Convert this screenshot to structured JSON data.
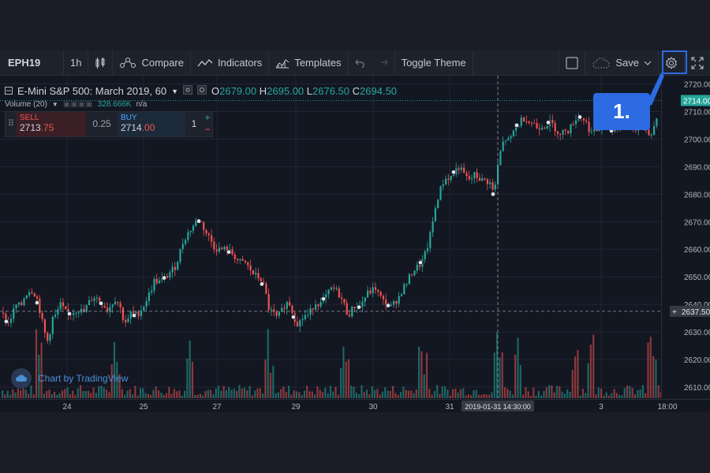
{
  "toolbar": {
    "symbol": "EPH19",
    "interval": "1h",
    "compare": "Compare",
    "indicators": "Indicators",
    "templates": "Templates",
    "toggle_theme": "Toggle Theme",
    "save": "Save"
  },
  "legend": {
    "title": "E-Mini S&P 500: March 2019, 60",
    "o_key": "O",
    "o_val": "2679.00",
    "h_key": "H",
    "h_val": "2695.00",
    "l_key": "L",
    "l_val": "2676.50",
    "c_key": "C",
    "c_val": "2694.50",
    "volume_label": "Volume (20)",
    "volume_value": "328.666K",
    "volume_na": "n/a"
  },
  "trade": {
    "sell_label": "SELL",
    "sell_price_main": "2713",
    "sell_price_frac": ".75",
    "spread": "0.25",
    "buy_label": "BUY",
    "buy_price_main": "2714",
    "buy_price_frac": ".00",
    "qty": "1",
    "plus": "+",
    "minus": "−"
  },
  "callout": {
    "label": "1."
  },
  "watermark": {
    "label": "Chart by TradingView"
  },
  "crosshair": {
    "time_label": "2019-01-31 14:30:00",
    "price_label": "2637.50"
  },
  "last_price_label": "2714.00",
  "colors": {
    "up": "#26a69a",
    "down": "#ef5350",
    "accent": "#2c6be2",
    "bg": "#131722"
  },
  "chart_data": {
    "type": "candlestick",
    "title": "E-Mini S&P 500: March 2019, 60",
    "y_ticks": [
      "2720.00",
      "2710.00",
      "2700.00",
      "2690.00",
      "2680.00",
      "2670.00",
      "2660.00",
      "2650.00",
      "2640.00",
      "2630.00",
      "2620.00",
      "2610.00"
    ],
    "ylim": [
      2606,
      2723
    ],
    "x_ticks": [
      "24",
      "25",
      "27",
      "29",
      "30",
      "31",
      "3",
      "18:00"
    ],
    "close_path": [
      [
        0,
        2637
      ],
      [
        5,
        2635
      ],
      [
        10,
        2633
      ],
      [
        15,
        2637
      ],
      [
        20,
        2640
      ],
      [
        25,
        2639
      ],
      [
        30,
        2643
      ],
      [
        35,
        2645
      ],
      [
        40,
        2645
      ],
      [
        45,
        2643
      ],
      [
        50,
        2637
      ],
      [
        55,
        2630
      ],
      [
        60,
        2626
      ],
      [
        65,
        2635
      ],
      [
        70,
        2636
      ],
      [
        75,
        2640
      ],
      [
        80,
        2638
      ],
      [
        85,
        2636
      ],
      [
        90,
        2637
      ],
      [
        95,
        2638
      ],
      [
        100,
        2638
      ],
      [
        105,
        2637
      ],
      [
        110,
        2640
      ],
      [
        115,
        2642
      ],
      [
        120,
        2643
      ],
      [
        125,
        2641
      ],
      [
        130,
        2640
      ],
      [
        135,
        2638
      ],
      [
        140,
        2640
      ],
      [
        145,
        2642
      ],
      [
        150,
        2640
      ],
      [
        155,
        2635
      ],
      [
        160,
        2633
      ],
      [
        165,
        2637
      ],
      [
        170,
        2636
      ],
      [
        175,
        2637
      ],
      [
        180,
        2639
      ],
      [
        185,
        2642
      ],
      [
        190,
        2645
      ],
      [
        195,
        2649
      ],
      [
        200,
        2648
      ],
      [
        205,
        2649
      ],
      [
        210,
        2650
      ],
      [
        215,
        2652
      ],
      [
        220,
        2653
      ],
      [
        225,
        2657
      ],
      [
        230,
        2662
      ],
      [
        235,
        2665
      ],
      [
        240,
        2667
      ],
      [
        245,
        2669
      ],
      [
        250,
        2671
      ],
      [
        255,
        2669
      ],
      [
        260,
        2666
      ],
      [
        265,
        2664
      ],
      [
        270,
        2661
      ],
      [
        275,
        2660
      ],
      [
        280,
        2660
      ],
      [
        285,
        2660
      ],
      [
        290,
        2659
      ],
      [
        295,
        2658
      ],
      [
        300,
        2656
      ],
      [
        305,
        2655
      ],
      [
        310,
        2655
      ],
      [
        315,
        2653
      ],
      [
        320,
        2651
      ],
      [
        325,
        2650
      ],
      [
        330,
        2649
      ],
      [
        335,
        2645
      ],
      [
        340,
        2638
      ],
      [
        345,
        2637
      ],
      [
        350,
        2635
      ],
      [
        355,
        2637
      ],
      [
        360,
        2640
      ],
      [
        365,
        2641
      ],
      [
        370,
        2637
      ],
      [
        375,
        2633
      ],
      [
        380,
        2634
      ],
      [
        385,
        2636
      ],
      [
        390,
        2636
      ],
      [
        395,
        2639
      ],
      [
        400,
        2641
      ],
      [
        405,
        2640
      ],
      [
        410,
        2642
      ],
      [
        415,
        2644
      ],
      [
        420,
        2646
      ],
      [
        425,
        2645
      ],
      [
        430,
        2643
      ],
      [
        435,
        2640
      ],
      [
        440,
        2636
      ],
      [
        445,
        2638
      ],
      [
        450,
        2640
      ],
      [
        455,
        2639
      ],
      [
        460,
        2642
      ],
      [
        465,
        2644
      ],
      [
        470,
        2645
      ],
      [
        475,
        2646
      ],
      [
        480,
        2643
      ],
      [
        485,
        2641
      ],
      [
        490,
        2640
      ],
      [
        495,
        2639
      ],
      [
        500,
        2641
      ],
      [
        505,
        2643
      ],
      [
        510,
        2646
      ],
      [
        515,
        2648
      ],
      [
        520,
        2651
      ],
      [
        525,
        2653
      ],
      [
        530,
        2654
      ],
      [
        535,
        2656
      ],
      [
        540,
        2660
      ],
      [
        545,
        2666
      ],
      [
        550,
        2674
      ],
      [
        555,
        2680
      ],
      [
        560,
        2684
      ],
      [
        565,
        2686
      ],
      [
        570,
        2686
      ],
      [
        575,
        2688
      ],
      [
        580,
        2690
      ],
      [
        585,
        2688
      ],
      [
        590,
        2686
      ],
      [
        595,
        2685
      ],
      [
        600,
        2687
      ],
      [
        605,
        2686
      ],
      [
        610,
        2685
      ],
      [
        615,
        2685
      ],
      [
        620,
        2684
      ],
      [
        625,
        2680
      ],
      [
        630,
        2690
      ],
      [
        635,
        2698
      ],
      [
        640,
        2700
      ],
      [
        645,
        2699
      ],
      [
        650,
        2703
      ],
      [
        655,
        2705
      ],
      [
        660,
        2707
      ],
      [
        665,
        2708
      ],
      [
        670,
        2706
      ],
      [
        675,
        2706
      ],
      [
        680,
        2704
      ],
      [
        685,
        2705
      ],
      [
        690,
        2705
      ],
      [
        695,
        2706
      ],
      [
        700,
        2705
      ],
      [
        705,
        2703
      ],
      [
        710,
        2701
      ],
      [
        715,
        2704
      ],
      [
        720,
        2703
      ],
      [
        725,
        2706
      ],
      [
        730,
        2708
      ],
      [
        735,
        2708
      ],
      [
        740,
        2707
      ],
      [
        745,
        2704
      ],
      [
        750,
        2702
      ],
      [
        755,
        2703
      ],
      [
        760,
        2704
      ],
      [
        765,
        2706
      ],
      [
        770,
        2705
      ],
      [
        775,
        2703
      ],
      [
        780,
        2704
      ],
      [
        785,
        2705
      ],
      [
        790,
        2706
      ],
      [
        795,
        2705
      ],
      [
        800,
        2704
      ],
      [
        805,
        2704
      ],
      [
        810,
        2705
      ],
      [
        815,
        2705
      ],
      [
        820,
        2703
      ],
      [
        825,
        2701
      ],
      [
        830,
        2707
      ],
      [
        835,
        2712
      ],
      [
        838,
        2714
      ]
    ]
  }
}
